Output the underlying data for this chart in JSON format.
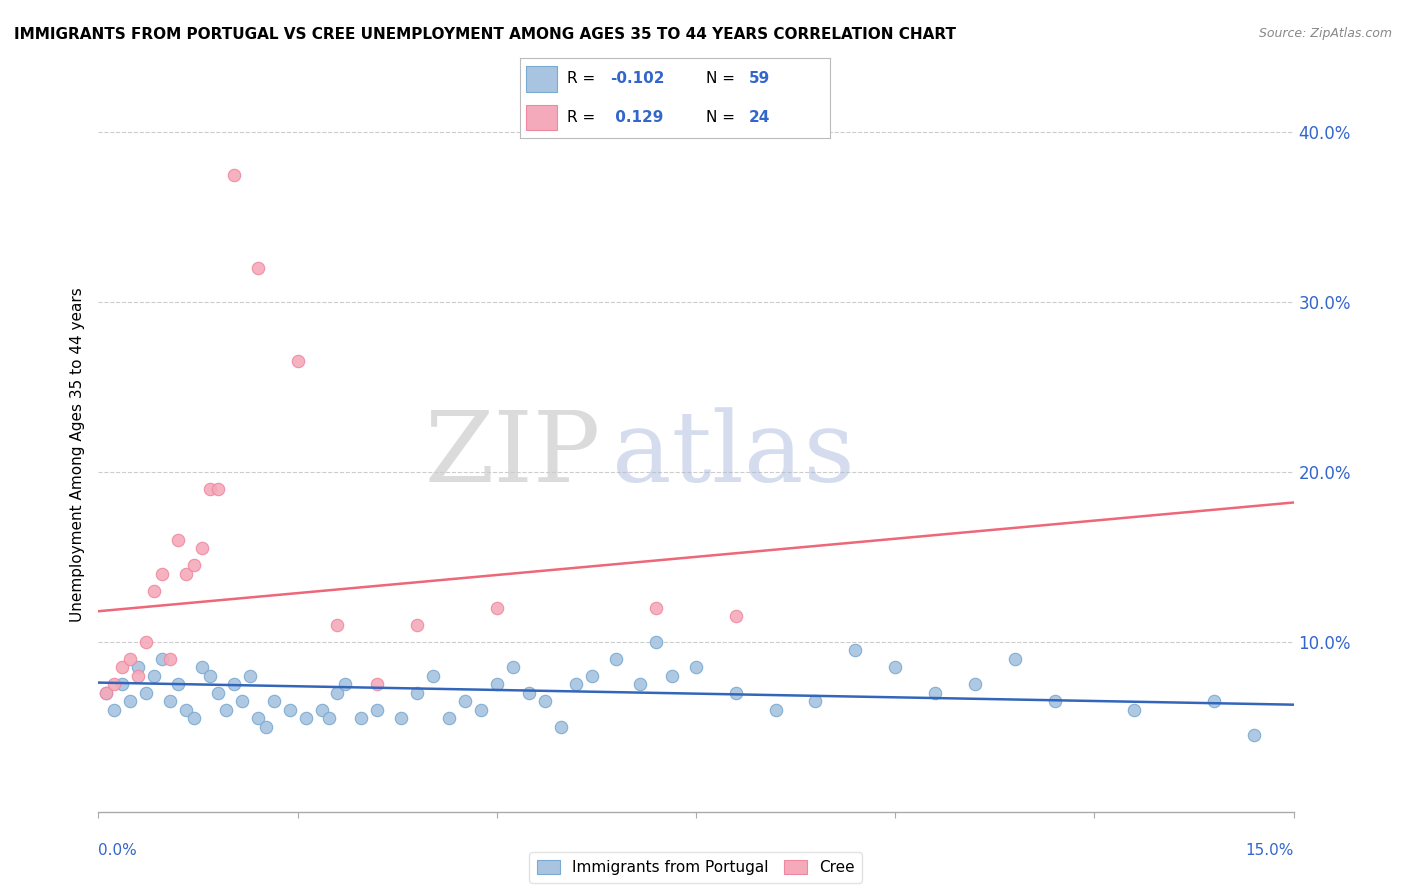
{
  "title": "IMMIGRANTS FROM PORTUGAL VS CREE UNEMPLOYMENT AMONG AGES 35 TO 44 YEARS CORRELATION CHART",
  "source": "Source: ZipAtlas.com",
  "ylabel": "Unemployment Among Ages 35 to 44 years",
  "xlim": [
    0.0,
    0.15
  ],
  "ylim": [
    0.0,
    0.42
  ],
  "yticks": [
    0.1,
    0.2,
    0.3,
    0.4
  ],
  "ytick_labels": [
    "10.0%",
    "20.0%",
    "30.0%",
    "40.0%"
  ],
  "blue_color": "#A8C4E0",
  "pink_color": "#F4AABB",
  "blue_edge_color": "#7AAAD0",
  "pink_edge_color": "#F088A0",
  "blue_line_color": "#3366BB",
  "pink_line_color": "#EE6677",
  "blue_scatter": [
    [
      0.001,
      0.07
    ],
    [
      0.002,
      0.06
    ],
    [
      0.003,
      0.075
    ],
    [
      0.004,
      0.065
    ],
    [
      0.005,
      0.085
    ],
    [
      0.006,
      0.07
    ],
    [
      0.007,
      0.08
    ],
    [
      0.008,
      0.09
    ],
    [
      0.009,
      0.065
    ],
    [
      0.01,
      0.075
    ],
    [
      0.011,
      0.06
    ],
    [
      0.012,
      0.055
    ],
    [
      0.013,
      0.085
    ],
    [
      0.014,
      0.08
    ],
    [
      0.015,
      0.07
    ],
    [
      0.016,
      0.06
    ],
    [
      0.017,
      0.075
    ],
    [
      0.018,
      0.065
    ],
    [
      0.019,
      0.08
    ],
    [
      0.02,
      0.055
    ],
    [
      0.021,
      0.05
    ],
    [
      0.022,
      0.065
    ],
    [
      0.024,
      0.06
    ],
    [
      0.026,
      0.055
    ],
    [
      0.028,
      0.06
    ],
    [
      0.029,
      0.055
    ],
    [
      0.03,
      0.07
    ],
    [
      0.031,
      0.075
    ],
    [
      0.033,
      0.055
    ],
    [
      0.035,
      0.06
    ],
    [
      0.038,
      0.055
    ],
    [
      0.04,
      0.07
    ],
    [
      0.042,
      0.08
    ],
    [
      0.044,
      0.055
    ],
    [
      0.046,
      0.065
    ],
    [
      0.048,
      0.06
    ],
    [
      0.05,
      0.075
    ],
    [
      0.052,
      0.085
    ],
    [
      0.054,
      0.07
    ],
    [
      0.056,
      0.065
    ],
    [
      0.058,
      0.05
    ],
    [
      0.06,
      0.075
    ],
    [
      0.062,
      0.08
    ],
    [
      0.065,
      0.09
    ],
    [
      0.068,
      0.075
    ],
    [
      0.07,
      0.1
    ],
    [
      0.072,
      0.08
    ],
    [
      0.075,
      0.085
    ],
    [
      0.08,
      0.07
    ],
    [
      0.085,
      0.06
    ],
    [
      0.09,
      0.065
    ],
    [
      0.095,
      0.095
    ],
    [
      0.1,
      0.085
    ],
    [
      0.105,
      0.07
    ],
    [
      0.11,
      0.075
    ],
    [
      0.115,
      0.09
    ],
    [
      0.12,
      0.065
    ],
    [
      0.13,
      0.06
    ],
    [
      0.14,
      0.065
    ],
    [
      0.145,
      0.045
    ]
  ],
  "pink_scatter": [
    [
      0.001,
      0.07
    ],
    [
      0.002,
      0.075
    ],
    [
      0.003,
      0.085
    ],
    [
      0.004,
      0.09
    ],
    [
      0.005,
      0.08
    ],
    [
      0.006,
      0.1
    ],
    [
      0.007,
      0.13
    ],
    [
      0.008,
      0.14
    ],
    [
      0.009,
      0.09
    ],
    [
      0.01,
      0.16
    ],
    [
      0.011,
      0.14
    ],
    [
      0.012,
      0.145
    ],
    [
      0.013,
      0.155
    ],
    [
      0.014,
      0.19
    ],
    [
      0.015,
      0.19
    ],
    [
      0.017,
      0.375
    ],
    [
      0.02,
      0.32
    ],
    [
      0.025,
      0.265
    ],
    [
      0.03,
      0.11
    ],
    [
      0.035,
      0.075
    ],
    [
      0.04,
      0.11
    ],
    [
      0.05,
      0.12
    ],
    [
      0.07,
      0.12
    ],
    [
      0.08,
      0.115
    ]
  ],
  "blue_trend_x": [
    0.0,
    0.15
  ],
  "blue_trend_y": [
    0.076,
    0.063
  ],
  "pink_trend_x": [
    0.0,
    0.15
  ],
  "pink_trend_y": [
    0.118,
    0.182
  ],
  "background_color": "#FFFFFF",
  "grid_color": "#CCCCCC",
  "watermark_zip_color": "#CCCCCC",
  "watermark_atlas_color": "#AABBCC"
}
